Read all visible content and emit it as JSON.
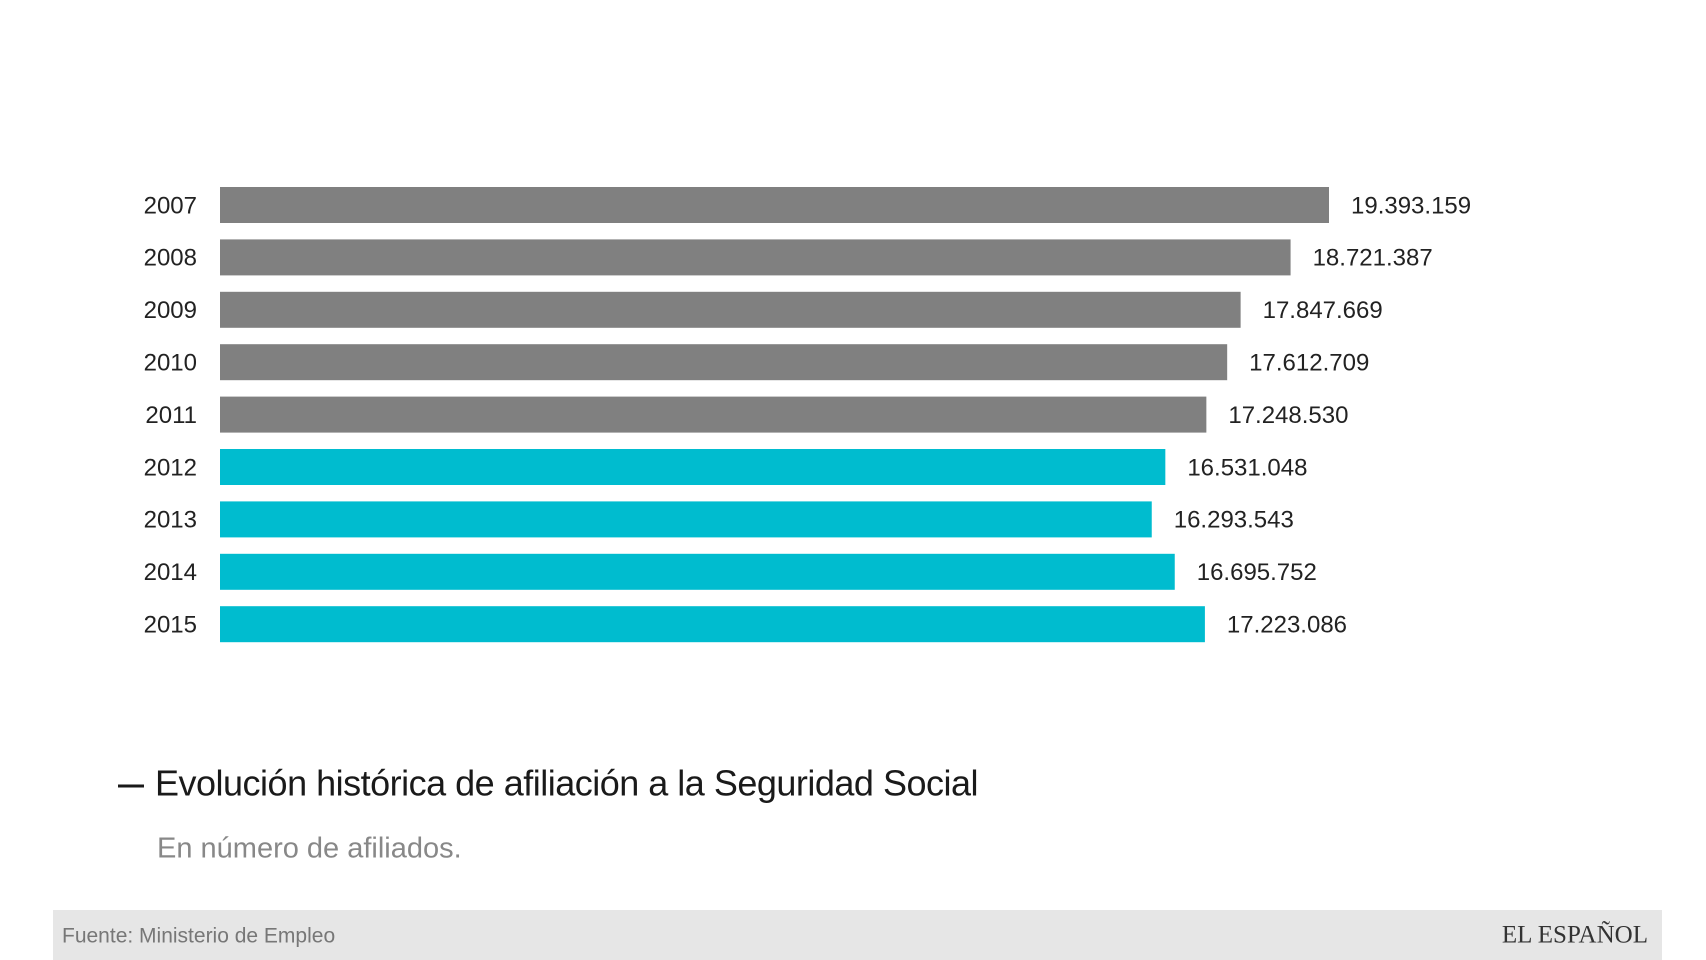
{
  "chart_data": {
    "type": "bar",
    "orientation": "horizontal",
    "title": "Evolución histórica de afiliación a la Seguridad Social",
    "subtitle": "En número de afiliados.",
    "source": "Fuente: Ministerio de Empleo",
    "brand": "EL ESPAÑOL",
    "categories": [
      "2007",
      "2008",
      "2009",
      "2010",
      "2011",
      "2012",
      "2013",
      "2014",
      "2015"
    ],
    "values": [
      19393159,
      18721387,
      17847669,
      17612709,
      17248530,
      16531048,
      16293543,
      16695752,
      17223086
    ],
    "value_labels": [
      "19.393.159",
      "18.721.387",
      "17.847.669",
      "17.612.709",
      "17.248.530",
      "16.531.048",
      "16.293.543",
      "16.695.752",
      "17.223.086"
    ],
    "colors": [
      "#808080",
      "#808080",
      "#808080",
      "#808080",
      "#808080",
      "#00bccf",
      "#00bccf",
      "#00bccf",
      "#00bccf"
    ]
  }
}
